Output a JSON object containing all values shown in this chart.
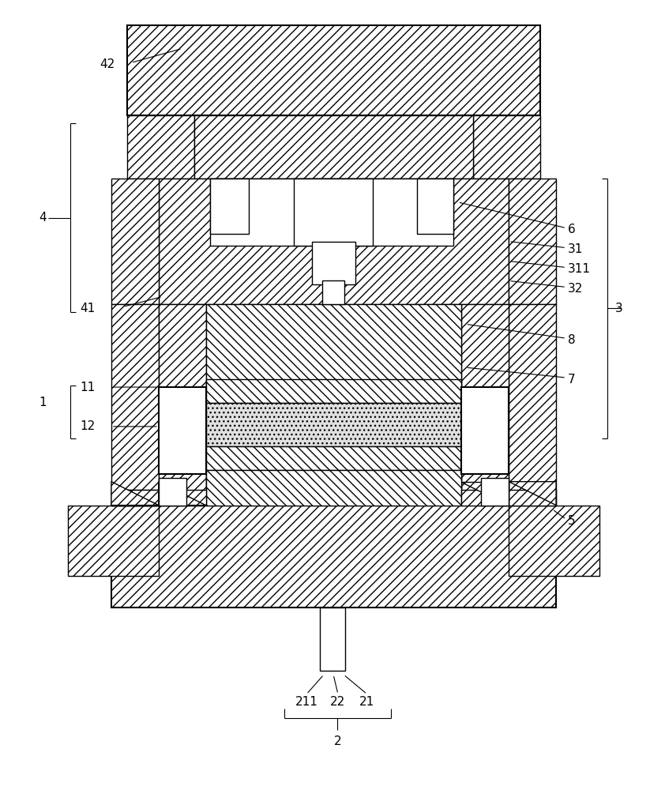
{
  "fig_width": 8.42,
  "fig_height": 10.0,
  "dpi": 100,
  "bg": "#ffffff",
  "lc": "#000000",
  "lw": 1.0,
  "lw2": 1.5,
  "ann_lw": 0.8,
  "fs": 11
}
